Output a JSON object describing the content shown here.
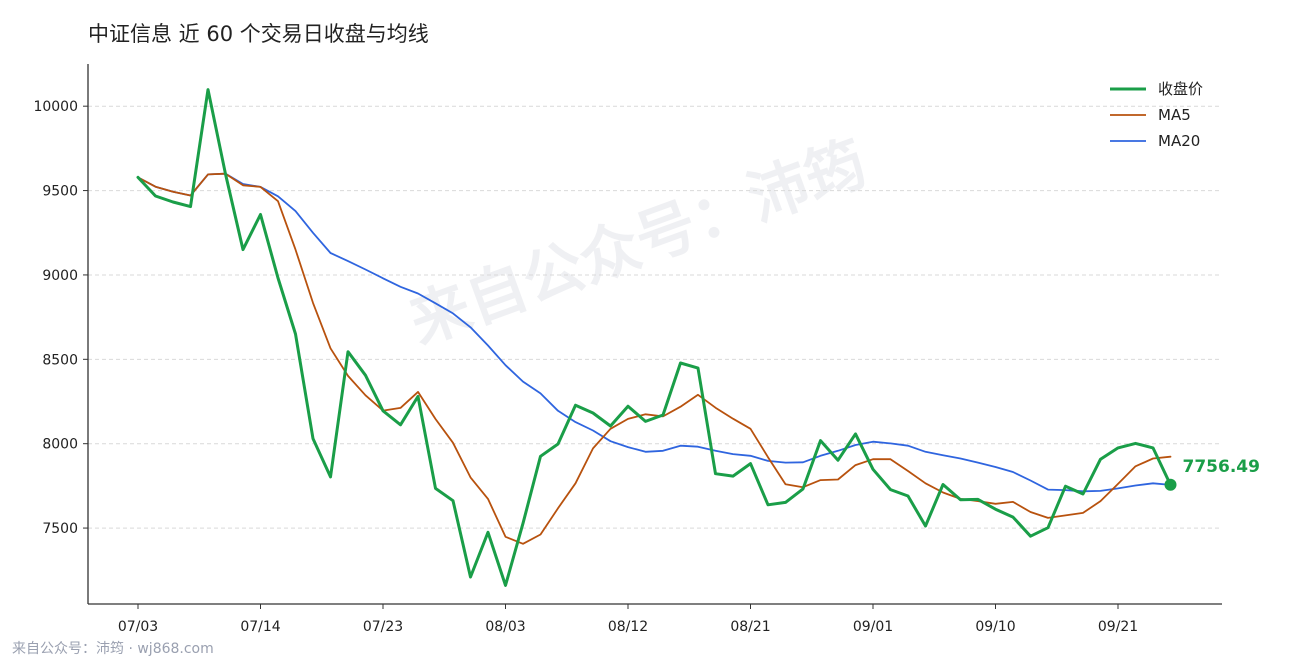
{
  "chart_data": {
    "type": "line",
    "title": "中证信息 近 60 个交易日收盘与均线",
    "xlabel": "",
    "ylabel": "",
    "ylim": [
      7050,
      10250
    ],
    "grid": "horizontal dashed",
    "legend_position": "top-right",
    "y_ticks": [
      7500,
      8000,
      8500,
      9000,
      9500,
      10000
    ],
    "x_ticks": [
      {
        "index": 0,
        "label": "07/03"
      },
      {
        "index": 7,
        "label": "07/14"
      },
      {
        "index": 14,
        "label": "07/23"
      },
      {
        "index": 21,
        "label": "08/03"
      },
      {
        "index": 28,
        "label": "08/12"
      },
      {
        "index": 35,
        "label": "08/21"
      },
      {
        "index": 42,
        "label": "09/01"
      },
      {
        "index": 49,
        "label": "09/10"
      },
      {
        "index": 56,
        "label": "09/21"
      }
    ],
    "series": [
      {
        "name": "收盘价",
        "color": "#1a9e48",
        "values": [
          9578,
          9468,
          9432,
          9405,
          10098,
          9598,
          9150,
          9358,
          8982,
          8650,
          8030,
          7803,
          8545,
          8405,
          8195,
          8112,
          8280,
          7735,
          7662,
          7210,
          7475,
          7160,
          7528,
          7925,
          7998,
          8228,
          8182,
          8105,
          8222,
          8132,
          8170,
          8478,
          8448,
          7822,
          7808,
          7882,
          7638,
          7652,
          7732,
          8018,
          7902,
          8058,
          7848,
          7728,
          7690,
          7512,
          7758,
          7668,
          7670,
          7612,
          7565,
          7452,
          7502,
          7748,
          7702,
          7908,
          7975,
          8002,
          7975,
          7756.49
        ]
      },
      {
        "name": "MA5",
        "color": "#b8520e",
        "values": [
          9578,
          9523,
          9493,
          9471,
          9596,
          9600,
          9531,
          9522,
          9437,
          9150,
          8834,
          8565,
          8402,
          8287,
          8196,
          8212,
          8307,
          8146,
          8005,
          7800,
          7673,
          7448,
          7407,
          7462,
          7617,
          7765,
          7972,
          8088,
          8147,
          8174,
          8162,
          8219,
          8290,
          8213,
          8148,
          8088,
          7920,
          7760,
          7742,
          7784,
          7788,
          7873,
          7908,
          7908,
          7838,
          7765,
          7711,
          7673,
          7660,
          7644,
          7655,
          7595,
          7560,
          7575,
          7590,
          7660,
          7762,
          7866,
          7912,
          7923
        ]
      },
      {
        "name": "MA20",
        "color": "#2f65df",
        "values": [
          9578,
          9523,
          9493,
          9471,
          9596,
          9600,
          9539,
          9522,
          9466,
          9378,
          9250,
          9130,
          9082,
          9032,
          8980,
          8930,
          8890,
          8832,
          8772,
          8690,
          8582,
          8465,
          8368,
          8298,
          8195,
          8128,
          8078,
          8015,
          7980,
          7952,
          7958,
          7988,
          7982,
          7958,
          7938,
          7928,
          7898,
          7888,
          7890,
          7928,
          7958,
          7992,
          8012,
          8002,
          7988,
          7952,
          7932,
          7912,
          7888,
          7862,
          7832,
          7782,
          7728,
          7725,
          7718,
          7720,
          7735,
          7752,
          7765,
          7756
        ]
      }
    ],
    "last_value_label": "7756.49",
    "last_value_color": "#1a9e48"
  },
  "watermark": "来自公众号：沛筠",
  "footer": "来自公众号：沛筠 · wj868.com"
}
